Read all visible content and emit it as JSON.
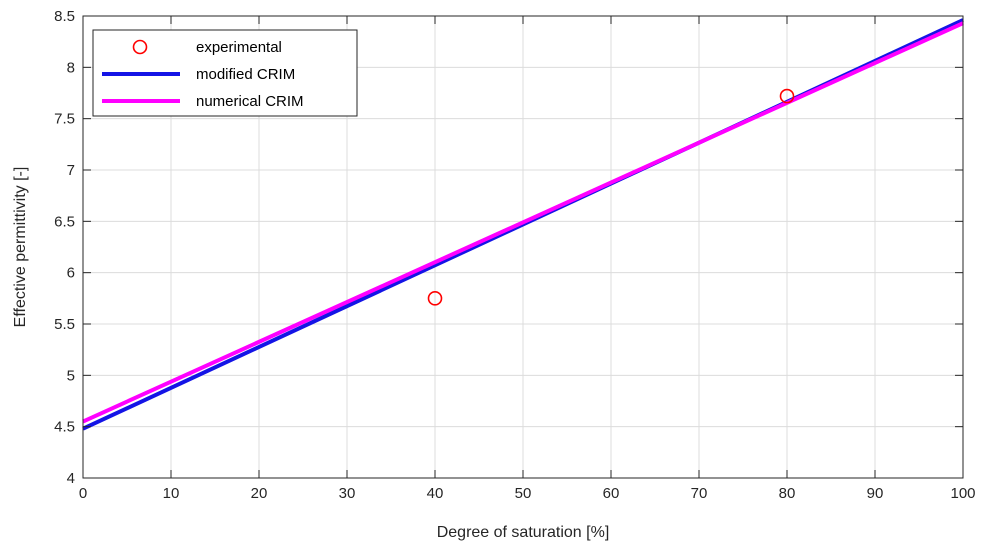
{
  "chart_data": {
    "type": "line",
    "xlabel": "Degree of saturation [%]",
    "ylabel": "Effective permittivity [-]",
    "xlim": [
      0,
      100
    ],
    "ylim": [
      4,
      8.5
    ],
    "xticks": [
      0,
      10,
      20,
      30,
      40,
      50,
      60,
      70,
      80,
      90,
      100
    ],
    "yticks": [
      4,
      4.5,
      5,
      5.5,
      6,
      6.5,
      7,
      7.5,
      8,
      8.5
    ],
    "ytick_labels": [
      "4",
      "4.5",
      "5",
      "5.5",
      "6",
      "6.5",
      "7",
      "7.5",
      "8",
      "8.5"
    ],
    "grid": true,
    "legend_position": "top-left",
    "series": [
      {
        "name": "experimental",
        "kind": "scatter",
        "marker": "open-circle",
        "color": "#ff0000",
        "x": [
          40,
          80
        ],
        "y": [
          5.75,
          7.72
        ]
      },
      {
        "name": "modified CRIM",
        "kind": "line",
        "color": "#1414e6",
        "x": [
          0,
          100
        ],
        "y": [
          4.48,
          8.46
        ]
      },
      {
        "name": "numerical CRIM",
        "kind": "line",
        "color": "#ff00ff",
        "x": [
          0,
          100
        ],
        "y": [
          4.55,
          8.43
        ]
      }
    ]
  }
}
